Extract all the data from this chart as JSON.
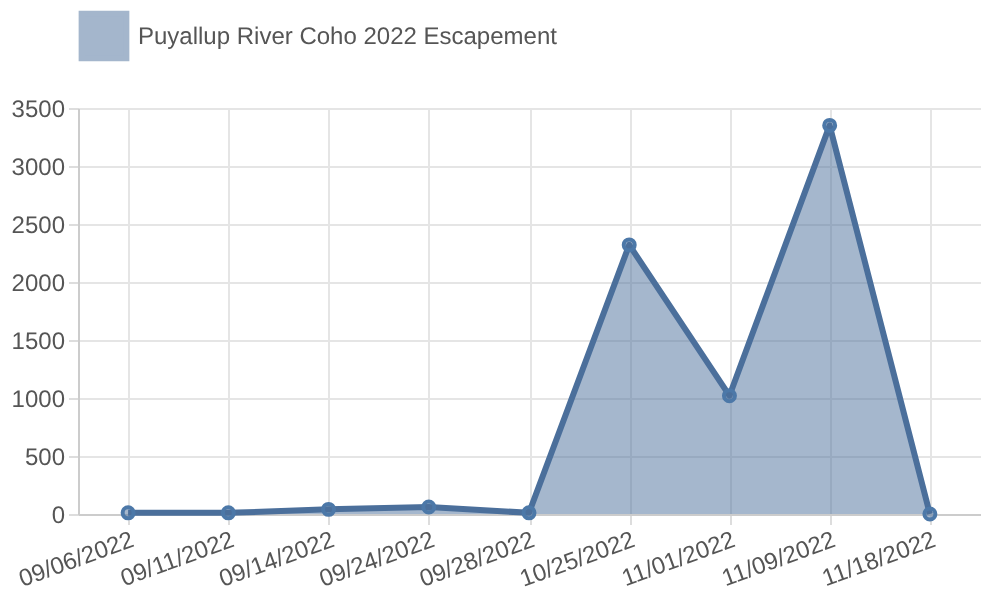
{
  "chart_data": {
    "type": "area",
    "categories": [
      "09/06/2022",
      "09/11/2022",
      "09/14/2022",
      "09/24/2022",
      "09/28/2022",
      "10/25/2022",
      "11/01/2022",
      "11/09/2022",
      "11/18/2022"
    ],
    "series": [
      {
        "name": "Puyallup River Coho 2022 Escapement",
        "color": "#4b6f9b",
        "values": [
          10,
          10,
          40,
          60,
          10,
          2320,
          1020,
          3350,
          0
        ]
      }
    ],
    "ylim": [
      0,
      3500
    ],
    "yticks": [
      0,
      500,
      1000,
      1500,
      2000,
      2500,
      3000,
      3500
    ],
    "grid": true,
    "legend": "top",
    "marker": "circle"
  }
}
